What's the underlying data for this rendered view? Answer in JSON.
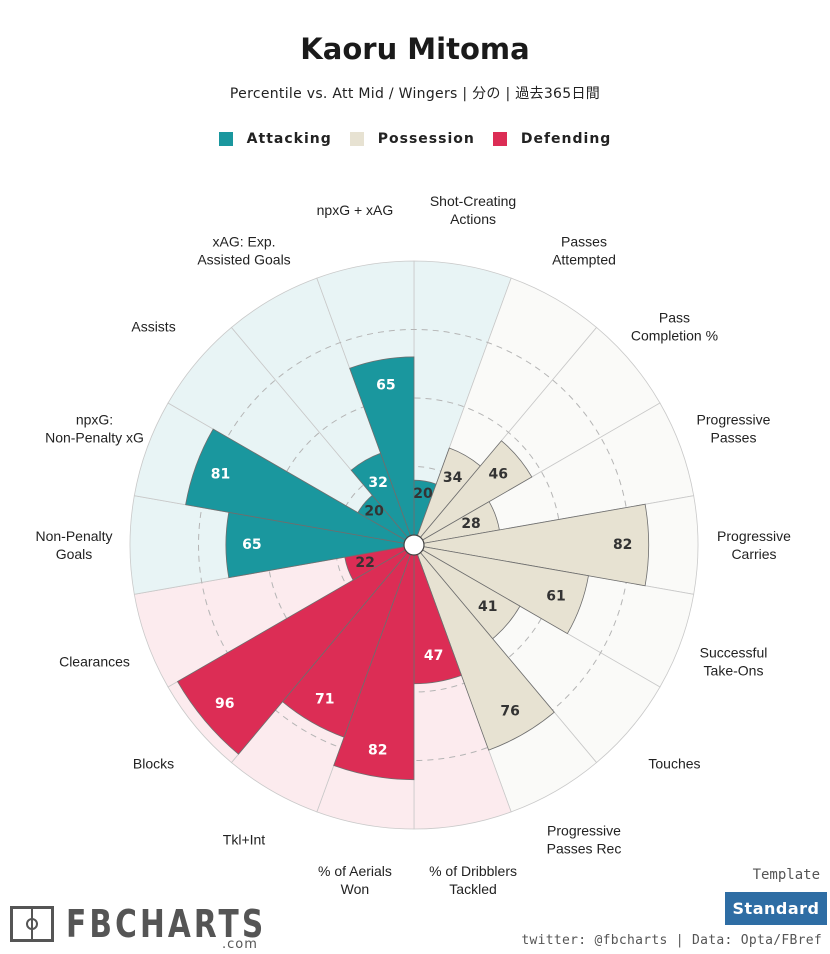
{
  "header": {
    "title": "Kaoru Mitoma",
    "subtitle": "Percentile vs. Att Mid / Wingers | 分の | 過去365日間"
  },
  "legend": [
    {
      "label": "Attacking",
      "color": "#1a979e"
    },
    {
      "label": "Possession",
      "color": "#e7e2d2"
    },
    {
      "label": "Defending",
      "color": "#dc2d55"
    }
  ],
  "chart_data": {
    "type": "polar-bar",
    "title": "Kaoru Mitoma",
    "scale": [
      0,
      100
    ],
    "grid_rings": [
      25,
      50,
      75
    ],
    "categories": [
      {
        "label": "Shot-Creating Actions",
        "value": 20,
        "group": "Attacking"
      },
      {
        "label": "Passes Attempted",
        "value": 34,
        "group": "Possession"
      },
      {
        "label": "Pass Completion %",
        "value": 46,
        "group": "Possession"
      },
      {
        "label": "Progressive Passes",
        "value": 28,
        "group": "Possession"
      },
      {
        "label": "Progressive Carries",
        "value": 82,
        "group": "Possession"
      },
      {
        "label": "Successful Take-Ons",
        "value": 61,
        "group": "Possession"
      },
      {
        "label": "Touches",
        "value": 41,
        "group": "Possession"
      },
      {
        "label": "Progressive Passes Rec",
        "value": 76,
        "group": "Possession"
      },
      {
        "label": "% of Dribblers Tackled",
        "value": 47,
        "group": "Defending"
      },
      {
        "label": "% of Aerials Won",
        "value": 82,
        "group": "Defending"
      },
      {
        "label": "Tkl+Int",
        "value": 71,
        "group": "Defending"
      },
      {
        "label": "Blocks",
        "value": 96,
        "group": "Defending"
      },
      {
        "label": "Clearances",
        "value": 22,
        "group": "Defending"
      },
      {
        "label": "Non-Penalty Goals",
        "value": 65,
        "group": "Attacking"
      },
      {
        "label": "npxG: Non-Penalty xG",
        "value": 81,
        "group": "Attacking"
      },
      {
        "label": "Assists",
        "value": 20,
        "group": "Attacking"
      },
      {
        "label": "xAG: Exp. Assisted Goals",
        "value": 32,
        "group": "Attacking"
      },
      {
        "label": "npxG + xAG",
        "value": 65,
        "group": "Attacking"
      }
    ],
    "group_colors": {
      "Attacking": {
        "fill": "#1a979e",
        "bg": "#e8f4f5",
        "text": "#ffffff"
      },
      "Possession": {
        "fill": "#e7e2d2",
        "bg": "#fafaf8",
        "text": "#333333"
      },
      "Defending": {
        "fill": "#dc2d55",
        "bg": "#fcebee",
        "text": "#ffffff"
      }
    },
    "label_text_color": "#333333"
  },
  "footer": {
    "logo_text": "FBCHARTS",
    "logo_sub": ".com",
    "template_label": "Template",
    "template_button": "Standard",
    "credit": "twitter: @fbcharts | Data: Opta/FBref"
  }
}
